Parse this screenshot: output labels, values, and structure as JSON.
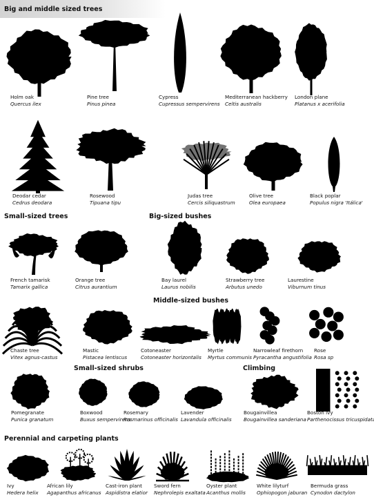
{
  "sections": {
    "big_middle_trees": "Big and middle sized trees",
    "small_trees": "Small-sized trees",
    "big_bushes": "Big-sized bushes",
    "middle_bushes": "Middle-sized bushes",
    "small_shrubs": "Small-sized shrubs",
    "climbing": "Climbing",
    "perennial": "Perennial and carpeting plants"
  },
  "plants": [
    {
      "common": "Holm oak",
      "scientific": "Quercus ilex",
      "icon": "round-tree-icon"
    },
    {
      "common": "Pine tree",
      "scientific": "Pinus pinea",
      "icon": "umbrella-pine-icon"
    },
    {
      "common": "Cypress",
      "scientific": "Cupressus sempervirens",
      "icon": "columnar-cypress-icon"
    },
    {
      "common": "Mediterranean hackberry",
      "scientific": "Celtis australis",
      "icon": "round-tree-icon"
    },
    {
      "common": "London plane",
      "scientific": "Platanus x acerifolia",
      "icon": "oval-tree-icon"
    },
    {
      "common": "Deodar cedar",
      "scientific": "Cedrus deodara",
      "icon": "conifer-icon"
    },
    {
      "common": "Rosewood",
      "scientific": "Tipuana tipu",
      "icon": "spreading-tree-icon"
    },
    {
      "common": "Judas tree",
      "scientific": "Cercis siliquastrum",
      "icon": "vase-tree-icon"
    },
    {
      "common": "Olive tree",
      "scientific": "Olea europaea",
      "icon": "round-tree-icon"
    },
    {
      "common": "Black poplar",
      "scientific": "Populus nigra 'Itálica'",
      "icon": "columnar-poplar-icon"
    },
    {
      "common": "French tamarisk",
      "scientific": "Tamarix gallica",
      "icon": "weeping-tree-icon"
    },
    {
      "common": "Orange tree",
      "scientific": "Citrus aurantium",
      "icon": "dome-tree-icon"
    },
    {
      "common": "Bay laurel",
      "scientific": "Laurus nobilis",
      "icon": "tall-bush-icon"
    },
    {
      "common": "Strawberry tree",
      "scientific": "Arbutus unedo",
      "icon": "bush-icon"
    },
    {
      "common": "Laurestine",
      "scientific": "Viburnum tinus",
      "icon": "bush-icon"
    },
    {
      "common": "Chaste tree",
      "scientific": "Vitex agnus-castus",
      "icon": "fountain-bush-icon"
    },
    {
      "common": "Mastic",
      "scientific": "Pistacea lentiscus",
      "icon": "bush-icon"
    },
    {
      "common": "Cotoneaster",
      "scientific": "Cotoneaster horizontalis",
      "icon": "spreading-shrub-icon"
    },
    {
      "common": "Myrtle",
      "scientific": "Myrtus communis",
      "icon": "upright-bush-icon"
    },
    {
      "common": "Narrowleaf firethorn",
      "scientific": "Pyracantha angustifolia",
      "icon": "upright-shrub-icon"
    },
    {
      "common": "Rose",
      "scientific": "Rosa sp",
      "icon": "rose-bush-icon"
    },
    {
      "common": "Pomegranate",
      "scientific": "Punica granatum",
      "icon": "bush-icon"
    },
    {
      "common": "Boxwood",
      "scientific": "Buxus sempervirens",
      "icon": "round-shrub-icon"
    },
    {
      "common": "Rosemary",
      "scientific": "Rosmarinus officinalis",
      "icon": "round-shrub-icon"
    },
    {
      "common": "Lavender",
      "scientific": "Lavandula officinalis",
      "icon": "mound-shrub-icon"
    },
    {
      "common": "Bougainvillea",
      "scientific": "Bougainvillea sanderiana",
      "icon": "climber-mound-icon"
    },
    {
      "common": "Boston ivy",
      "scientific": "Parthenocissus tricuspidata",
      "icon": "ivy-climber-icon"
    },
    {
      "common": "Ivy",
      "scientific": "Hedera helix",
      "icon": "ground-mound-icon"
    },
    {
      "common": "African lily",
      "scientific": "Agapanthus africanus",
      "icon": "flower-clump-icon"
    },
    {
      "common": "Cast-iron plant",
      "scientific": "Aspidistra elatior",
      "icon": "leaf-clump-icon"
    },
    {
      "common": "Sword fern",
      "scientific": "Nephrolepis exaltata",
      "icon": "fern-icon"
    },
    {
      "common": "Oyster plant",
      "scientific": "Acanthus mollis",
      "icon": "spike-clump-icon"
    },
    {
      "common": "White lilyturf",
      "scientific": "Ophiopogon jaburan",
      "icon": "grass-clump-icon"
    },
    {
      "common": "Bermuda grass",
      "scientific": "Cynodon dactylon",
      "icon": "lawn-icon"
    }
  ]
}
